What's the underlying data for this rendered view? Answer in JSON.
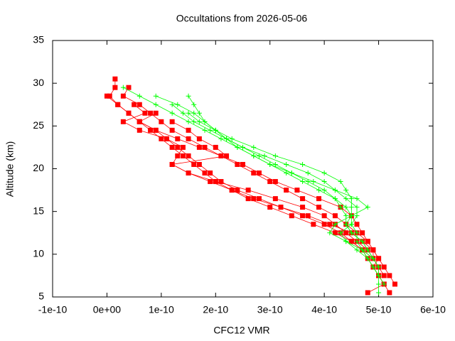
{
  "chart_data": {
    "type": "line",
    "title": "Occultations from 2026-05-06",
    "x_label": "CFC12 VMR",
    "y_label": "Altitude (km)",
    "xlim": [
      -1e-10,
      6e-10
    ],
    "xticks": [
      {
        "value": -1e-10,
        "label": "-1e-10"
      },
      {
        "value": 0,
        "label": "0e+00"
      },
      {
        "value": 1e-10,
        "label": "1e-10"
      },
      {
        "value": 2e-10,
        "label": "2e-10"
      },
      {
        "value": 3e-10,
        "label": "3e-10"
      },
      {
        "value": 4e-10,
        "label": "4e-10"
      },
      {
        "value": 5e-10,
        "label": "5e-10"
      },
      {
        "value": 6e-10,
        "label": "6e-10"
      }
    ],
    "ylim": [
      5,
      35
    ],
    "yticks": [
      5,
      10,
      15,
      20,
      25,
      30,
      35
    ],
    "grid": false,
    "series": [
      {
        "color": "#ff0000",
        "marker": "square",
        "x": [
          1.5e-11,
          1.5e-11,
          5e-12,
          2e-11,
          4e-11,
          6e-11,
          8e-11,
          1e-10,
          1.2e-10,
          1.4e-10,
          1.6e-10,
          1.8e-10,
          2e-10,
          2.3e-10,
          2.6e-10,
          3e-10,
          3.4e-10,
          3.8e-10,
          4.2e-10,
          4.5e-10,
          4.7e-10,
          4.9e-10,
          5e-10,
          5e-10,
          5.1e-10,
          5.2e-10
        ],
        "values": [
          30.5,
          29.5,
          28.5,
          27.5,
          26.5,
          25.5,
          24.5,
          23.5,
          22.5,
          21.5,
          20.5,
          19.5,
          18.5,
          17.5,
          16.5,
          15.5,
          14.5,
          13.5,
          12.5,
          11.5,
          10.5,
          9.5,
          8.5,
          7.5,
          6.5,
          5.5
        ]
      },
      {
        "color": "#ff0000",
        "marker": "square",
        "x": [
          0.0,
          2e-11,
          4e-11,
          6e-11,
          9e-11,
          1.1e-10,
          1.3e-10,
          1.5e-10,
          1.7e-10,
          1.9e-10,
          2.1e-10,
          2.4e-10,
          2.8e-10,
          3.2e-10,
          3.6e-10,
          4e-10,
          4.3e-10,
          4.5e-10,
          4.7e-10,
          4.8e-10,
          4.9e-10,
          5e-10,
          5.1e-10,
          4.8e-10
        ],
        "values": [
          28.5,
          27.5,
          26.5,
          25.5,
          24.5,
          23.5,
          22.5,
          21.5,
          20.5,
          19.5,
          18.5,
          17.5,
          16.5,
          15.5,
          14.5,
          13.5,
          12.5,
          11.5,
          10.5,
          9.5,
          8.5,
          7.5,
          6.5,
          5.5
        ]
      },
      {
        "color": "#ff0000",
        "marker": "square",
        "x": [
          4e-11,
          3e-11,
          6e-11,
          8e-11,
          1e-10,
          1.2e-10,
          1.5e-10,
          1.8e-10,
          2.1e-10,
          2.4e-10,
          2.7e-10,
          3e-10,
          3.3e-10,
          3.6e-10,
          3.9e-10,
          4.2e-10,
          4.4e-10,
          4.6e-10,
          4.8e-10,
          4.9e-10,
          5e-10,
          5.1e-10,
          5.2e-10,
          5.3e-10
        ],
        "values": [
          29.5,
          28.5,
          27.5,
          26.5,
          25.5,
          24.5,
          23.5,
          22.5,
          21.5,
          20.5,
          19.5,
          18.5,
          17.5,
          16.5,
          15.5,
          14.5,
          13.5,
          12.5,
          11.5,
          10.5,
          9.5,
          8.5,
          7.5,
          6.5
        ]
      },
      {
        "color": "#ff0000",
        "marker": "square",
        "x": [
          5e-11,
          7e-11,
          3e-11,
          6e-11,
          1.1e-10,
          1.4e-10,
          1.3e-10,
          1.2e-10,
          1.5e-10,
          1.9e-10,
          2.3e-10,
          2.7e-10,
          3.2e-10,
          3.7e-10,
          4.1e-10,
          4.5e-10,
          4.7e-10,
          4.9e-10,
          4.9e-10,
          5e-10,
          5.1e-10
        ],
        "values": [
          27.5,
          26.5,
          25.5,
          24.5,
          23.5,
          22.5,
          21.5,
          20.5,
          19.5,
          18.5,
          17.5,
          16.5,
          15.5,
          14.5,
          13.5,
          12.5,
          11.5,
          10.5,
          9.5,
          8.5,
          7.5
        ]
      },
      {
        "color": "#ff0000",
        "marker": "square",
        "x": [
          9e-11,
          6e-11,
          9e-11,
          1.3e-10,
          1.7e-10,
          2.1e-10,
          2.5e-10,
          2.8e-10,
          3.1e-10,
          3.5e-10,
          3.9e-10,
          4.3e-10,
          4.5e-10,
          4.6e-10,
          4.7e-10,
          4.8e-10,
          4.9e-10,
          5e-10,
          4.9e-10
        ],
        "values": [
          26.5,
          25.5,
          24.5,
          23.5,
          22.5,
          21.5,
          20.5,
          19.5,
          18.5,
          17.5,
          16.5,
          15.5,
          14.5,
          13.5,
          12.5,
          11.5,
          10.5,
          9.5,
          8.5
        ]
      },
      {
        "color": "#ff0000",
        "marker": "square",
        "x": [
          1.2e-10,
          1.5e-10,
          1.7e-10,
          2e-10,
          2.2e-10,
          1.2e-10,
          1.5e-10,
          2e-10,
          2.6e-10,
          3.1e-10,
          3.6e-10,
          4e-10,
          4.2e-10,
          4.4e-10,
          4.6e-10,
          4.8e-10
        ],
        "values": [
          25.5,
          24.5,
          23.5,
          22.5,
          21.5,
          20.5,
          19.5,
          18.5,
          17.5,
          16.5,
          15.5,
          14.5,
          13.5,
          12.5,
          11.5,
          10.5
        ]
      },
      {
        "color": "#00ff00",
        "marker": "plus",
        "x": [
          3e-11,
          6e-11,
          9e-11,
          1.2e-10,
          1.5e-10,
          1.8e-10,
          2.1e-10,
          2.4e-10,
          2.7e-10,
          3e-10,
          3.3e-10,
          3.6e-10,
          3.9e-10,
          4.2e-10,
          4.4e-10,
          4.5e-10,
          4.5e-10,
          4.6e-10,
          4.6e-10,
          4.7e-10,
          4.8e-10,
          4.9e-10,
          5e-10,
          5e-10,
          5e-10
        ],
        "values": [
          29.5,
          28.5,
          27.5,
          26.5,
          25.5,
          24.5,
          23.5,
          22.5,
          21.5,
          20.5,
          19.5,
          18.5,
          17.5,
          16.5,
          15.5,
          14.5,
          13.5,
          12.5,
          11.5,
          10.5,
          9.5,
          8.5,
          7.5,
          6.5,
          5.5
        ]
      },
      {
        "color": "#00ff00",
        "marker": "plus",
        "x": [
          9e-11,
          1.3e-10,
          1.6e-10,
          1.8e-10,
          2e-10,
          2.2e-10,
          2.4e-10,
          2.7e-10,
          3e-10,
          3.4e-10,
          3.7e-10,
          4e-10,
          4.2e-10,
          4.3e-10,
          4.4e-10,
          4.4e-10,
          4.5e-10,
          4.7e-10,
          4.8e-10,
          4.9e-10,
          5e-10,
          5e-10,
          5.1e-10
        ],
        "values": [
          28.5,
          27.5,
          26.5,
          25.5,
          24.5,
          23.5,
          22.5,
          21.5,
          20.5,
          19.5,
          18.5,
          17.5,
          16.5,
          15.5,
          14.5,
          13.5,
          12.5,
          11.5,
          10.5,
          9.5,
          8.5,
          7.5,
          6.5
        ]
      },
      {
        "color": "#00ff00",
        "marker": "plus",
        "x": [
          1.5e-10,
          1.6e-10,
          1.7e-10,
          1.8e-10,
          2e-10,
          2.3e-10,
          2.7e-10,
          3.1e-10,
          3.6e-10,
          4e-10,
          4.3e-10,
          4.4e-10,
          4.5e-10,
          4.5e-10,
          4.5e-10,
          4.4e-10,
          4.5e-10,
          4.7e-10,
          4.8e-10,
          4.9e-10,
          5e-10
        ],
        "values": [
          28.5,
          27.5,
          26.5,
          25.5,
          24.5,
          23.5,
          22.5,
          21.5,
          20.5,
          19.5,
          18.5,
          17.5,
          16.5,
          15.5,
          14.5,
          13.5,
          12.5,
          11.5,
          10.5,
          9.5,
          8.5
        ]
      },
      {
        "color": "#00ff00",
        "marker": "plus",
        "x": [
          1.2e-10,
          1.4e-10,
          1.6e-10,
          1.9e-10,
          2.2e-10,
          2.5e-10,
          2.9e-10,
          3.3e-10,
          3.7e-10,
          4e-10,
          4.2e-10,
          4.4e-10,
          4.6e-10,
          4.6e-10,
          4.5e-10,
          4.3e-10,
          4.4e-10,
          4.6e-10,
          4.8e-10,
          4.9e-10,
          5e-10
        ],
        "values": [
          27.5,
          26.5,
          25.5,
          24.5,
          23.5,
          22.5,
          21.5,
          20.5,
          19.5,
          18.5,
          17.5,
          16.5,
          15.5,
          14.5,
          13.5,
          12.5,
          11.5,
          10.5,
          9.5,
          8.5,
          7.5
        ]
      },
      {
        "color": "#00ff00",
        "marker": "plus",
        "x": [
          1.5e-10,
          1.7e-10,
          2e-10,
          2.2e-10,
          2.5e-10,
          2.8e-10,
          3.1e-10,
          3.4e-10,
          3.8e-10,
          4.2e-10,
          4.6e-10,
          4.8e-10,
          4.5e-10,
          4.2e-10,
          4.1e-10,
          4.4e-10,
          4.7e-10,
          4.9e-10
        ],
        "values": [
          26.5,
          25.5,
          24.5,
          23.5,
          22.5,
          21.5,
          20.5,
          19.5,
          18.5,
          17.5,
          16.5,
          15.5,
          14.5,
          13.5,
          12.5,
          11.5,
          10.5,
          9.5
        ]
      }
    ]
  }
}
